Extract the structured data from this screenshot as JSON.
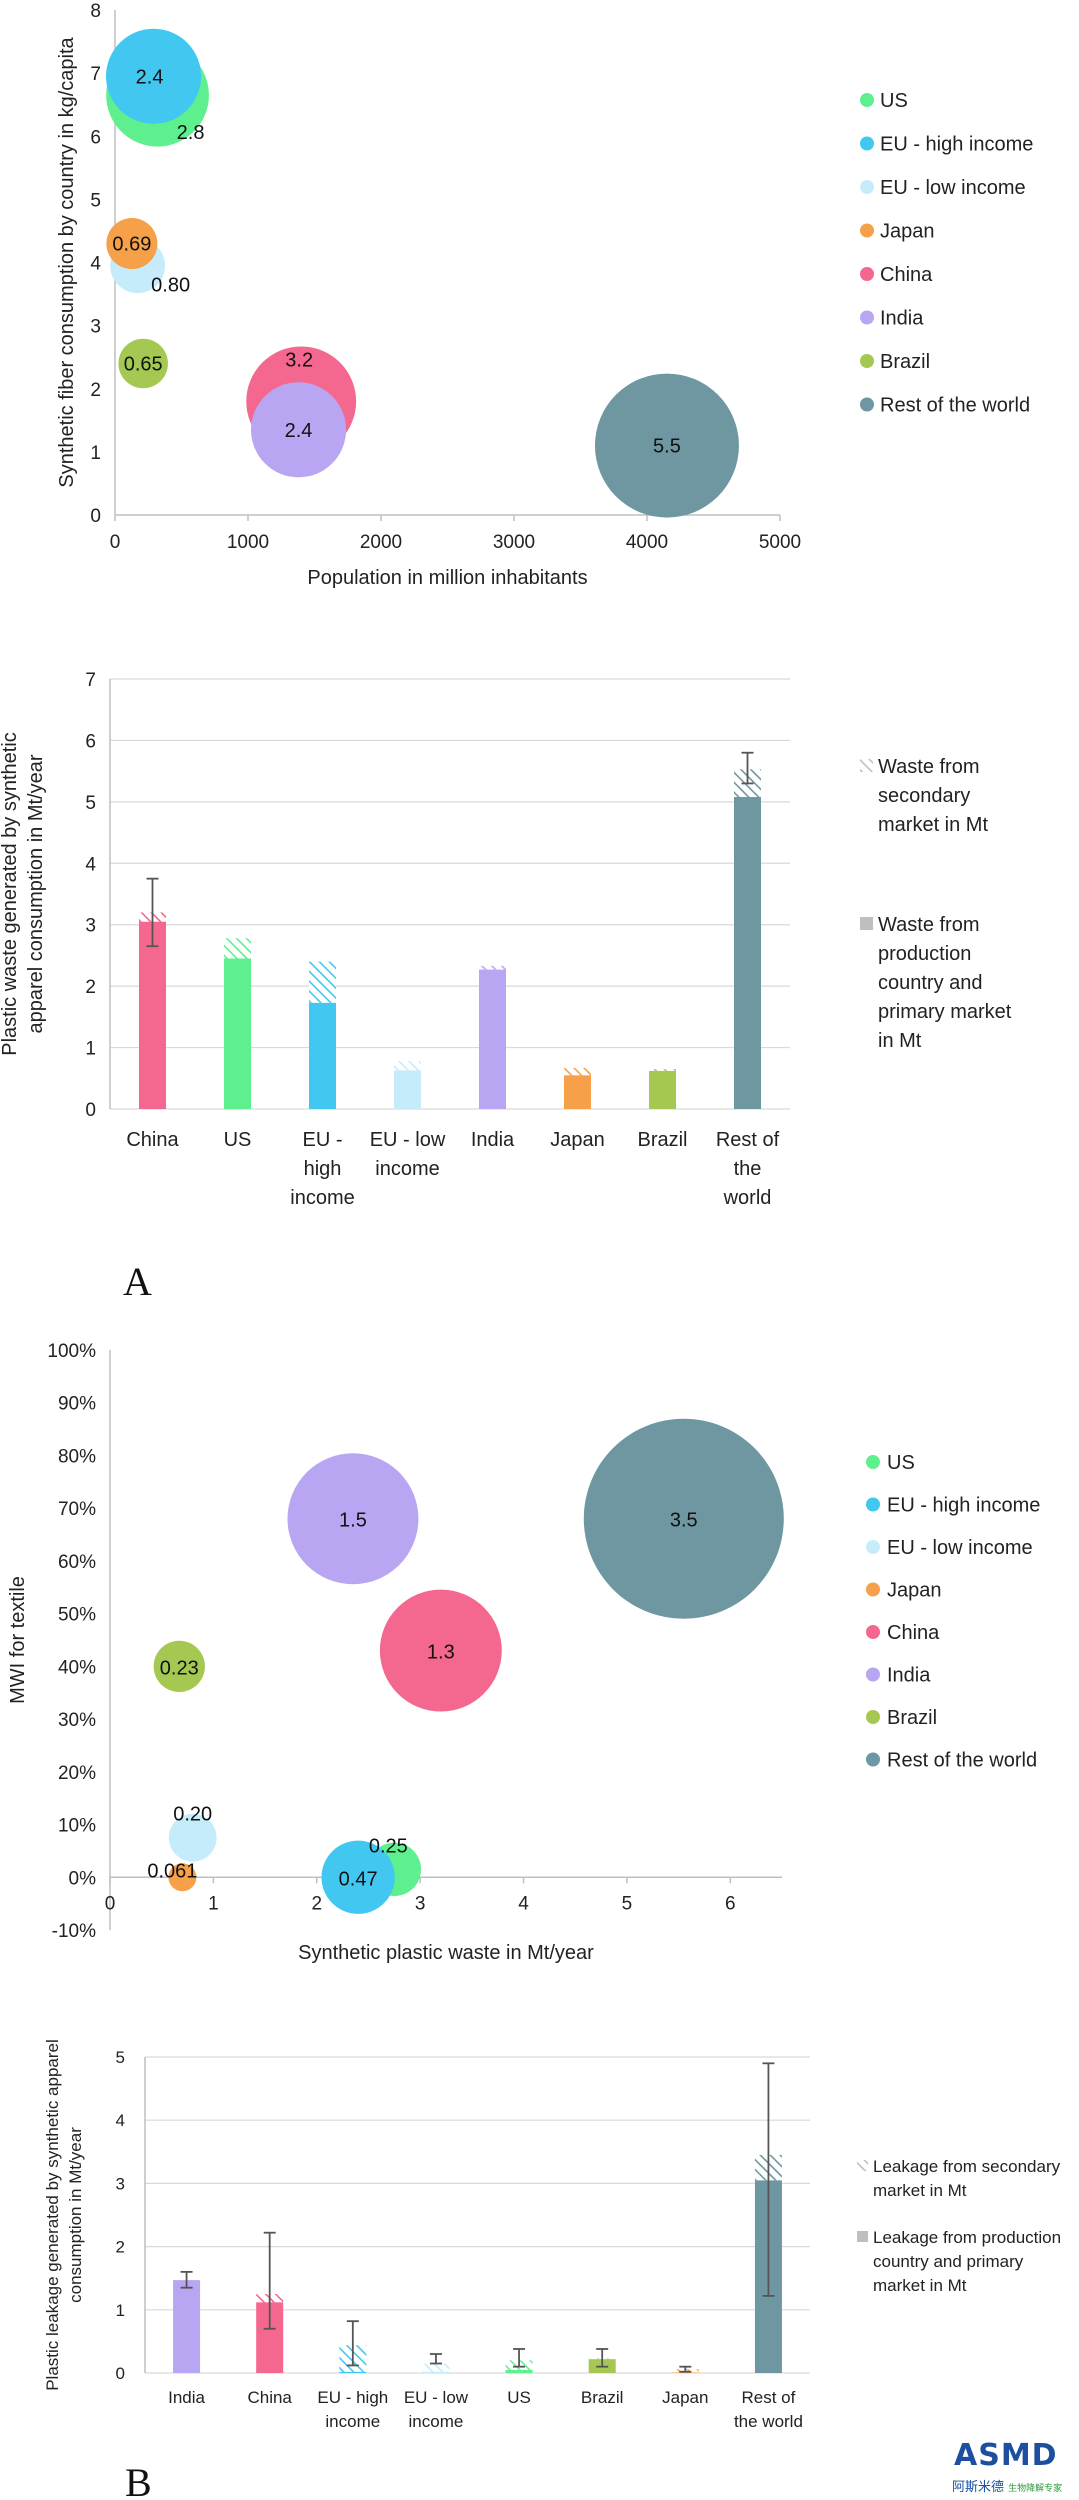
{
  "colors": {
    "US": "#5ef08f",
    "EU - high income": "#42c8f0",
    "EU - low income": "#c6ecfb",
    "Japan": "#f7a04a",
    "China": "#f4678e",
    "India": "#b9a6f3",
    "Brazil": "#a4c852",
    "Rest of the world": "#6e97a1",
    "grid": "#d9d9d9",
    "axis": "#bfbfbf"
  },
  "panel_letters": {
    "a": "A",
    "b": "B"
  },
  "logo": {
    "main": "ASMD",
    "sub": "阿斯米德",
    "sub2": "生物降解专家"
  },
  "chart_data": [
    {
      "id": "c1",
      "type": "scatter",
      "title": "",
      "xlabel": "Population in million inhabitants",
      "ylabel": "Synthetic fiber consumption by country in kg/capita",
      "xlim": [
        0,
        5000
      ],
      "ylim": [
        0,
        8
      ],
      "xticks": [
        0,
        1000,
        2000,
        3000,
        4000,
        5000
      ],
      "yticks": [
        0,
        1,
        2,
        3,
        4,
        5,
        6,
        7,
        8
      ],
      "legend": [
        "US",
        "EU - high income",
        "EU - low income",
        "Japan",
        "China",
        "India",
        "Brazil",
        "Rest of the world"
      ],
      "points": [
        {
          "name": "Rest of the world",
          "x": 4150,
          "y": 1.1,
          "size": 5.5,
          "label": "5.5"
        },
        {
          "name": "China",
          "x": 1400,
          "y": 1.8,
          "size": 3.2,
          "label": "3.2"
        },
        {
          "name": "India",
          "x": 1380,
          "y": 1.35,
          "size": 2.4,
          "label": "2.4"
        },
        {
          "name": "US",
          "x": 320,
          "y": 6.65,
          "size": 2.8,
          "label": "2.8"
        },
        {
          "name": "EU - high income",
          "x": 290,
          "y": 6.95,
          "size": 2.4,
          "label": "2.4"
        },
        {
          "name": "EU - low income",
          "x": 170,
          "y": 3.95,
          "size": 0.8,
          "label": "0.80"
        },
        {
          "name": "Japan",
          "x": 127,
          "y": 4.3,
          "size": 0.69,
          "label": "0.69"
        },
        {
          "name": "Brazil",
          "x": 212,
          "y": 2.4,
          "size": 0.65,
          "label": "0.65"
        }
      ]
    },
    {
      "id": "c2",
      "type": "bar",
      "stacked": true,
      "ylabel": "Plastic waste generated by synthetic apparel consumption in Mt/year",
      "ylim": [
        0,
        7
      ],
      "yticks": [
        0,
        1,
        2,
        3,
        4,
        5,
        6,
        7
      ],
      "categories": [
        "China",
        "US",
        "EU - high income",
        "EU - low income",
        "India",
        "Japan",
        "Brazil",
        "Rest of the world"
      ],
      "category_lines": [
        [
          "China"
        ],
        [
          "US"
        ],
        [
          "EU -",
          "high",
          "income"
        ],
        [
          "EU - low",
          "income"
        ],
        [
          "India"
        ],
        [
          "Japan"
        ],
        [
          "Brazil"
        ],
        [
          "Rest of",
          "the",
          "world"
        ]
      ],
      "series": [
        {
          "name": "Waste from production country and primary market in Mt",
          "values": [
            3.05,
            2.45,
            1.73,
            0.63,
            2.27,
            0.55,
            0.62,
            5.08
          ]
        },
        {
          "name": "Waste from secondary market in Mt",
          "values": [
            0.15,
            0.33,
            0.67,
            0.15,
            0.06,
            0.12,
            0.03,
            0.45
          ]
        }
      ],
      "error_bars": [
        {
          "category": "China",
          "low": 2.65,
          "high": 3.75
        },
        {
          "category": "Rest of the world",
          "low": 5.3,
          "high": 5.8
        }
      ],
      "legend": [
        {
          "name": "Waste from secondary market in Mt",
          "lines": [
            "Waste from",
            "secondary",
            "market in Mt"
          ]
        },
        {
          "name": "Waste from production country and primary market in Mt",
          "lines": [
            "Waste from",
            "production",
            "country and",
            "primary market",
            "in Mt"
          ]
        }
      ]
    },
    {
      "id": "c3",
      "type": "scatter",
      "xlabel": "Synthetic plastic waste in Mt/year",
      "ylabel": "MWI for textile",
      "xlim": [
        0,
        6.5
      ],
      "ylim": [
        -10,
        100
      ],
      "xticks": [
        0,
        1,
        2,
        3,
        4,
        5,
        6
      ],
      "yticks": [
        -10,
        0,
        10,
        20,
        30,
        40,
        50,
        60,
        70,
        80,
        90,
        100
      ],
      "ytick_labels": [
        "-10%",
        "0%",
        "10%",
        "20%",
        "30%",
        "40%",
        "50%",
        "60%",
        "70%",
        "80%",
        "90%",
        "100%"
      ],
      "legend": [
        "US",
        "EU - high income",
        "EU - low income",
        "Japan",
        "China",
        "India",
        "Brazil",
        "Rest of the world"
      ],
      "points": [
        {
          "name": "Rest of the world",
          "x": 5.55,
          "y": 68,
          "size": 3.5,
          "label": "3.5"
        },
        {
          "name": "India",
          "x": 2.35,
          "y": 68,
          "size": 1.5,
          "label": "1.5"
        },
        {
          "name": "China",
          "x": 3.2,
          "y": 43,
          "size": 1.3,
          "label": "1.3"
        },
        {
          "name": "Brazil",
          "x": 0.67,
          "y": 40,
          "size": 0.23,
          "label": "0.23"
        },
        {
          "name": "EU - low income",
          "x": 0.8,
          "y": 7.5,
          "size": 0.2,
          "label": "0.20"
        },
        {
          "name": "US",
          "x": 2.75,
          "y": 1.5,
          "size": 0.25,
          "label": "0.25"
        },
        {
          "name": "EU - high income",
          "x": 2.4,
          "y": 0,
          "size": 0.47,
          "label": "0.47"
        },
        {
          "name": "Japan",
          "x": 0.7,
          "y": 0,
          "size": 0.061,
          "label": "0.061"
        }
      ]
    },
    {
      "id": "c4",
      "type": "bar",
      "stacked": true,
      "ylabel": "Plastic leakage generated by synthetic apparel consumption in Mt/year",
      "ylim": [
        0,
        5
      ],
      "yticks": [
        0,
        1,
        2,
        3,
        4,
        5
      ],
      "categories": [
        "India",
        "China",
        "EU - high income",
        "EU - low income",
        "US",
        "Brazil",
        "Japan",
        "Rest of the world"
      ],
      "category_lines": [
        [
          "India"
        ],
        [
          "China"
        ],
        [
          "EU - high",
          "income"
        ],
        [
          "EU - low",
          "income"
        ],
        [
          "US"
        ],
        [
          "Brazil"
        ],
        [
          "Japan"
        ],
        [
          "Rest of",
          "the world"
        ]
      ],
      "series": [
        {
          "name": "Leakage from production country and primary market in Mt",
          "values": [
            1.47,
            1.12,
            0.02,
            0.02,
            0.05,
            0.22,
            0.01,
            3.05
          ]
        },
        {
          "name": "Leakage from secondary market in Mt",
          "values": [
            0.0,
            0.13,
            0.42,
            0.13,
            0.15,
            0.01,
            0.05,
            0.4
          ]
        }
      ],
      "error_bars": [
        {
          "category": "India",
          "low": 1.35,
          "high": 1.6
        },
        {
          "category": "China",
          "low": 0.7,
          "high": 2.22
        },
        {
          "category": "EU - high income",
          "low": 0.12,
          "high": 0.82
        },
        {
          "category": "EU - low income",
          "low": 0.15,
          "high": 0.3
        },
        {
          "category": "US",
          "low": 0.1,
          "high": 0.38
        },
        {
          "category": "Brazil",
          "low": 0.1,
          "high": 0.38
        },
        {
          "category": "Japan",
          "low": 0.02,
          "high": 0.1
        },
        {
          "category": "Rest of the world",
          "low": 1.22,
          "high": 4.9
        }
      ],
      "legend": [
        {
          "name": "Leakage from secondary market in Mt",
          "lines": [
            "Leakage from secondary",
            "market in Mt"
          ]
        },
        {
          "name": "Leakage from production country and primary market in Mt",
          "lines": [
            "Leakage from production",
            "country and primary",
            "market in Mt"
          ]
        }
      ]
    }
  ]
}
